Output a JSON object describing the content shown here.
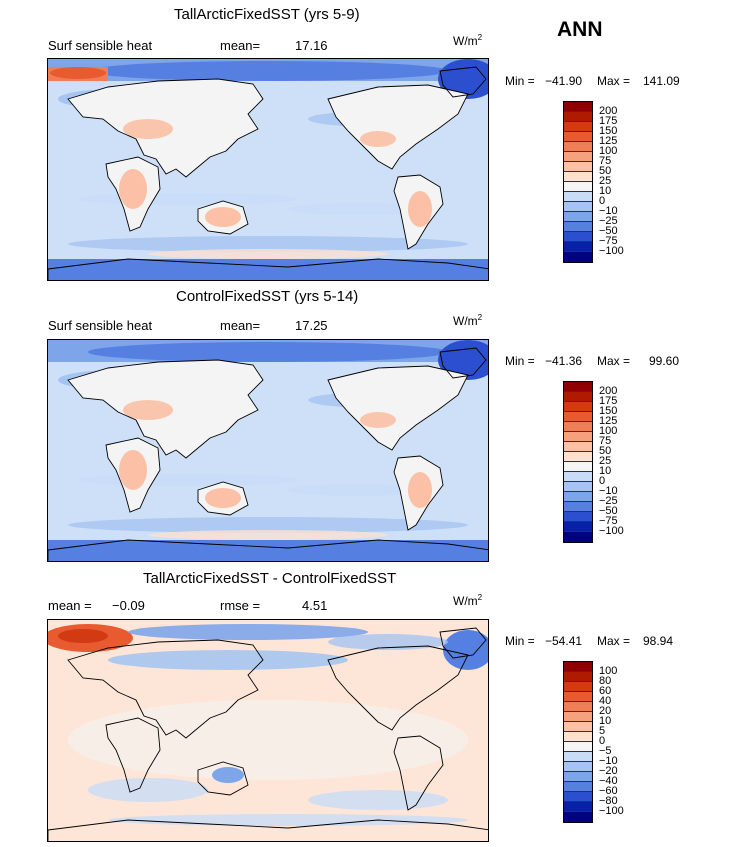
{
  "season": "ANN",
  "panels": [
    {
      "title": "TallArcticFixedSST (yrs 5-9)",
      "left_label": "Surf sensible heat",
      "stat_label": "mean=",
      "stat_value": "17.16",
      "units_base": "W/m",
      "units_exp": "2",
      "min_label": "Min =",
      "min_value": "−41.90",
      "max_label": "Max =",
      "max_value": "141.09",
      "levels": [
        "200",
        "175",
        "150",
        "125",
        "100",
        "75",
        "50",
        "25",
        "10",
        "0",
        "−10",
        "−25",
        "−50",
        "−75",
        "−100"
      ],
      "colors": [
        "#8c0000",
        "#b01a00",
        "#d13a12",
        "#e85a30",
        "#f27d55",
        "#f7a07e",
        "#fbc0a5",
        "#fde0cf",
        "#f4f4f4",
        "#c9dcf7",
        "#a6c4f1",
        "#7ea5ea",
        "#557fe0",
        "#2c4fd0",
        "#0a1fa8",
        "#000080"
      ],
      "map_base": "#cde0f8"
    },
    {
      "title": "ControlFixedSST (yrs 5-14)",
      "left_label": "Surf sensible heat",
      "stat_label": "mean=",
      "stat_value": "17.25",
      "units_base": "W/m",
      "units_exp": "2",
      "min_label": "Min =",
      "min_value": "−41.36",
      "max_label": "Max =",
      "max_value": "99.60",
      "levels": [
        "200",
        "175",
        "150",
        "125",
        "100",
        "75",
        "50",
        "25",
        "10",
        "0",
        "−10",
        "−25",
        "−50",
        "−75",
        "−100"
      ],
      "colors": [
        "#8c0000",
        "#b01a00",
        "#d13a12",
        "#e85a30",
        "#f27d55",
        "#f7a07e",
        "#fbc0a5",
        "#fde0cf",
        "#f4f4f4",
        "#c9dcf7",
        "#a6c4f1",
        "#7ea5ea",
        "#557fe0",
        "#2c4fd0",
        "#0a1fa8",
        "#000080"
      ],
      "map_base": "#cde0f8"
    },
    {
      "title": "TallArcticFixedSST - ControlFixedSST",
      "left_label": "mean =",
      "left_value": "−0.09",
      "stat_label": "rmse =",
      "stat_value": "4.51",
      "units_base": "W/m",
      "units_exp": "2",
      "min_label": "Min =",
      "min_value": "−54.41",
      "max_label": "Max =",
      "max_value": "98.94",
      "levels": [
        "100",
        "80",
        "60",
        "40",
        "20",
        "10",
        "5",
        "0",
        "−5",
        "−10",
        "−20",
        "−40",
        "−60",
        "−80",
        "−100"
      ],
      "colors": [
        "#8c0000",
        "#b01a00",
        "#d13a12",
        "#e85a30",
        "#f27d55",
        "#f7a07e",
        "#fbc0a5",
        "#fde0cf",
        "#f4f4f4",
        "#c9dcf7",
        "#a6c4f1",
        "#7ea5ea",
        "#557fe0",
        "#2c4fd0",
        "#0a1fa8",
        "#000080"
      ],
      "map_base": "#fde6d8"
    }
  ]
}
